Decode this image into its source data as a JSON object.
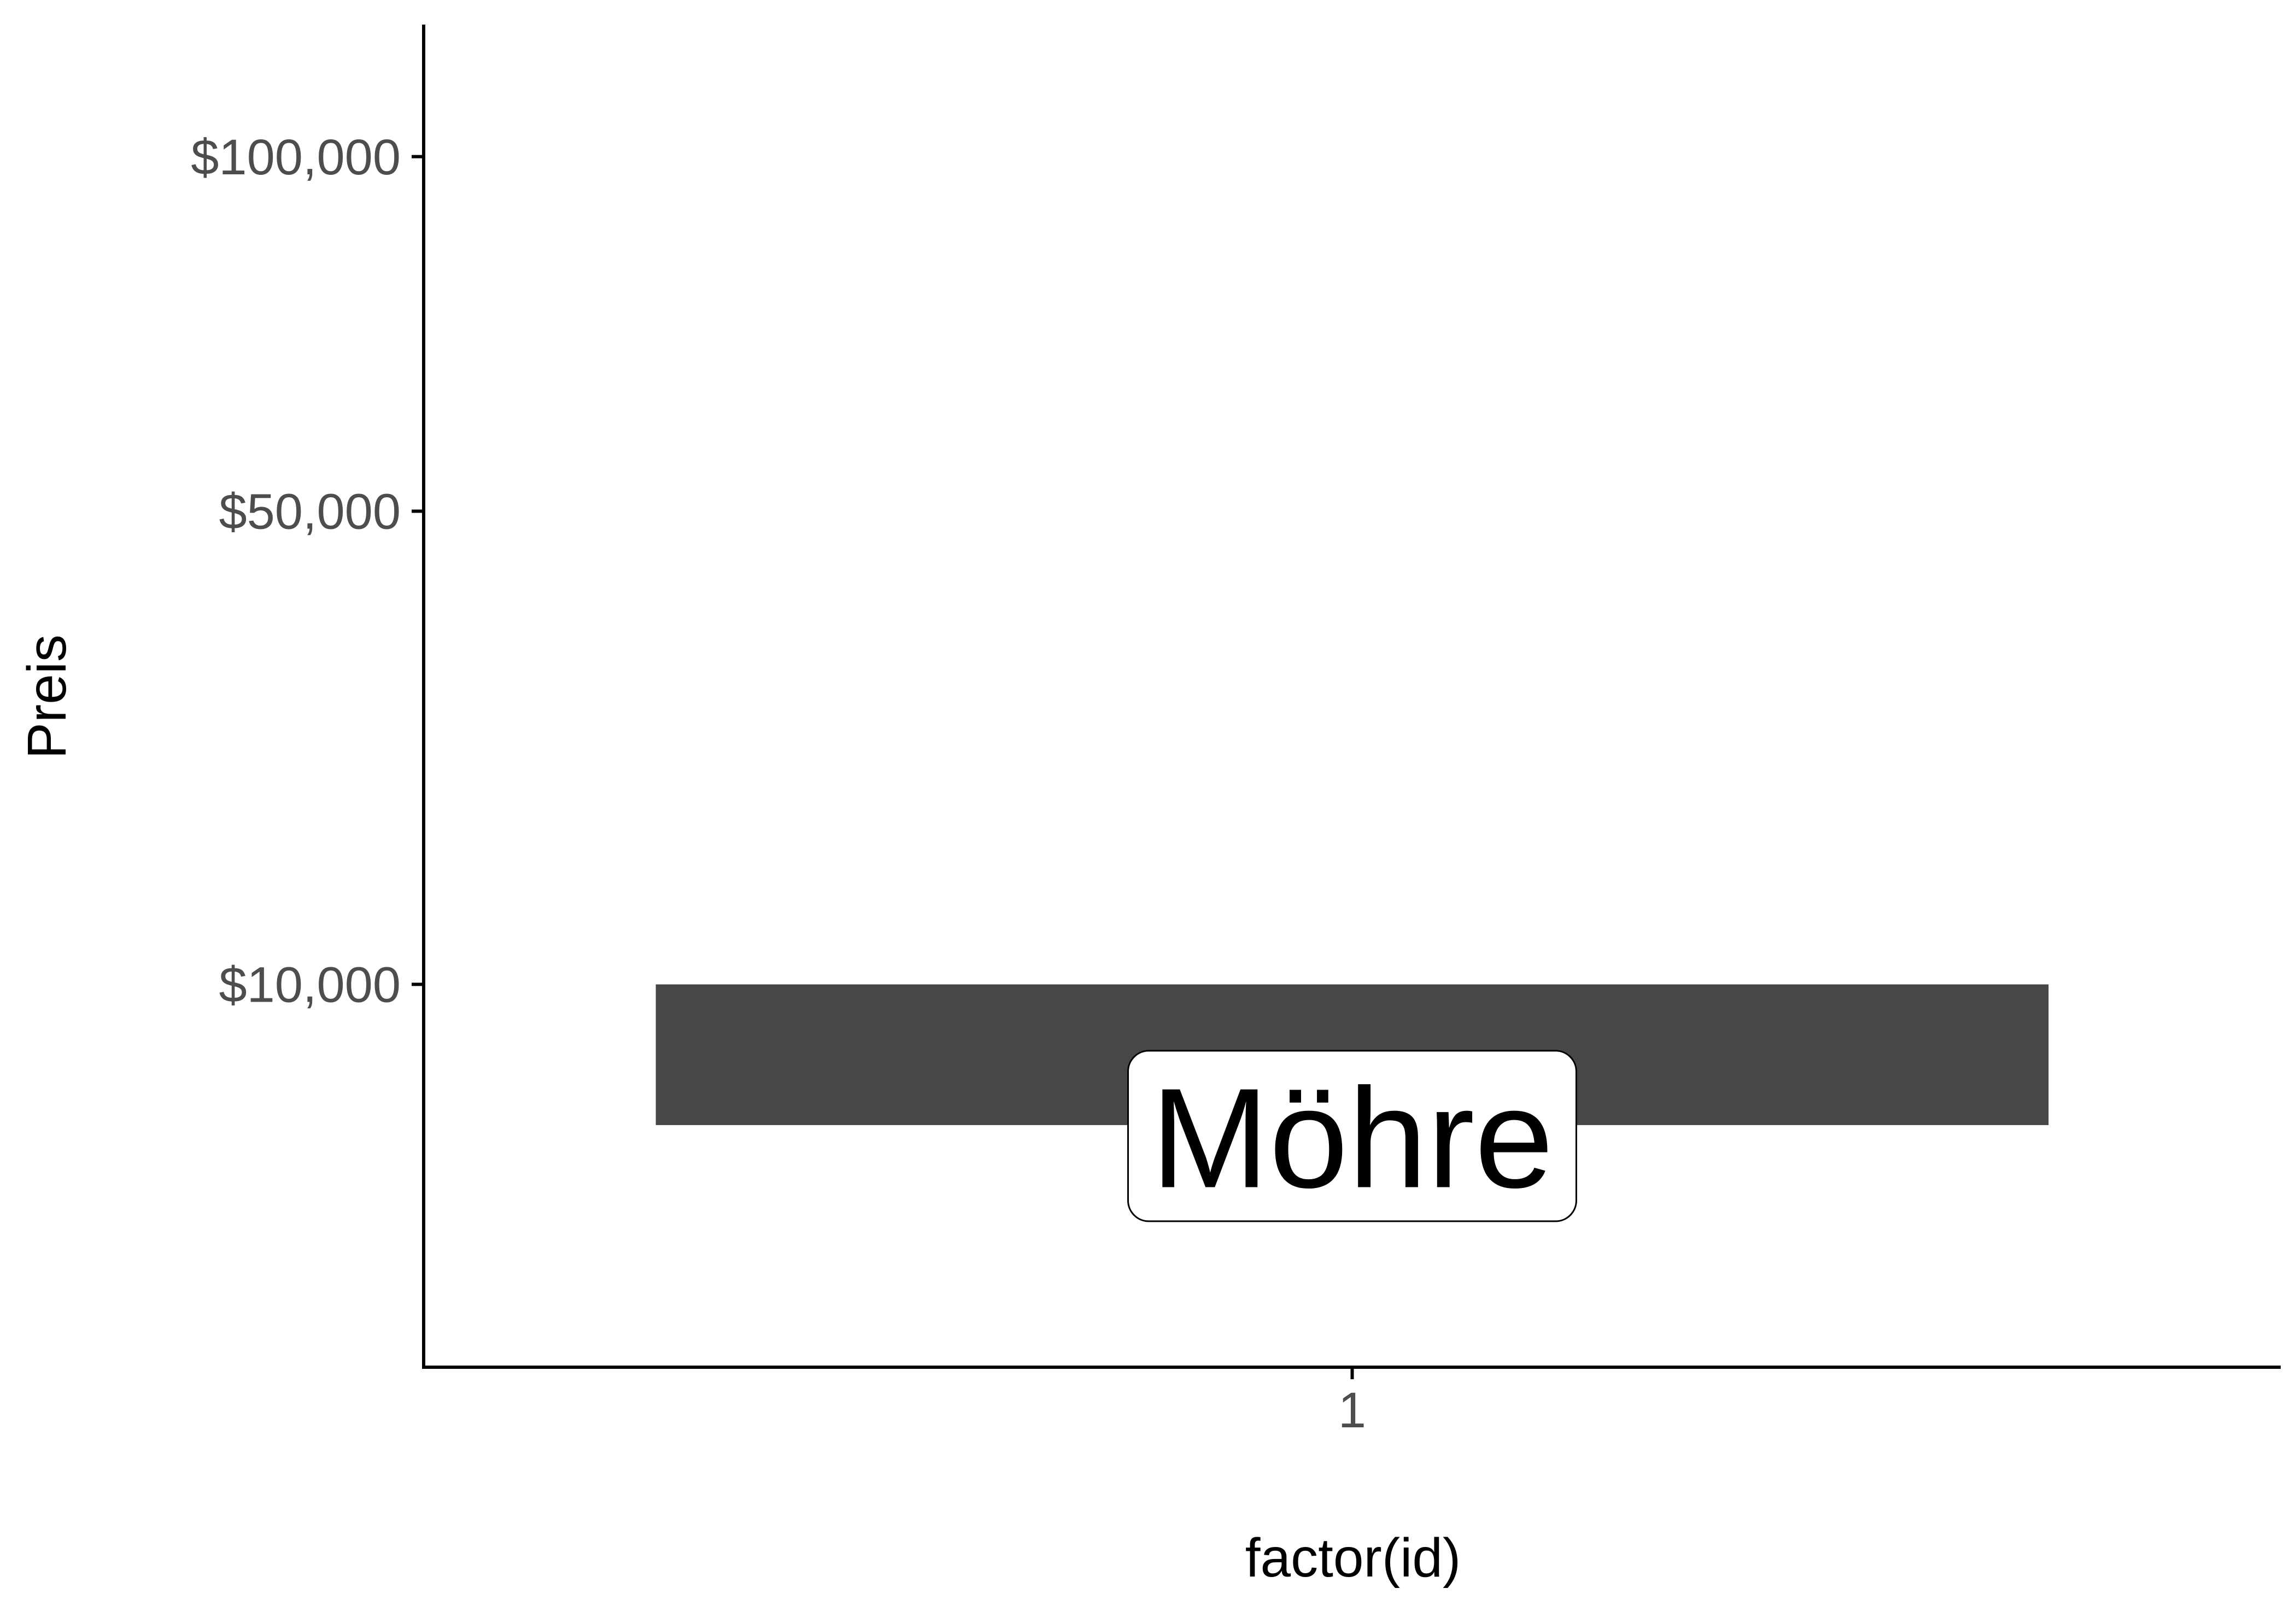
{
  "chart_data": {
    "type": "bar",
    "categories": [
      "1"
    ],
    "bars": [
      {
        "category": "1",
        "ymin": 4000,
        "ymax": 10000,
        "label": "Möhre"
      }
    ],
    "xlabel": "factor(id)",
    "ylabel": "Preis",
    "y_scale": "sqrt",
    "ylim": [
      0,
      123000
    ],
    "y_ticks": [
      {
        "value": 10000,
        "label": "$10,000"
      },
      {
        "value": 50000,
        "label": "$50,000"
      },
      {
        "value": 100000,
        "label": "$100,000"
      }
    ],
    "grid": false,
    "legend": "none",
    "colors": {
      "bar": "#474747",
      "axis": "#000000",
      "tick_text": "#4d4d4d",
      "label_box": "#ffffff"
    }
  }
}
